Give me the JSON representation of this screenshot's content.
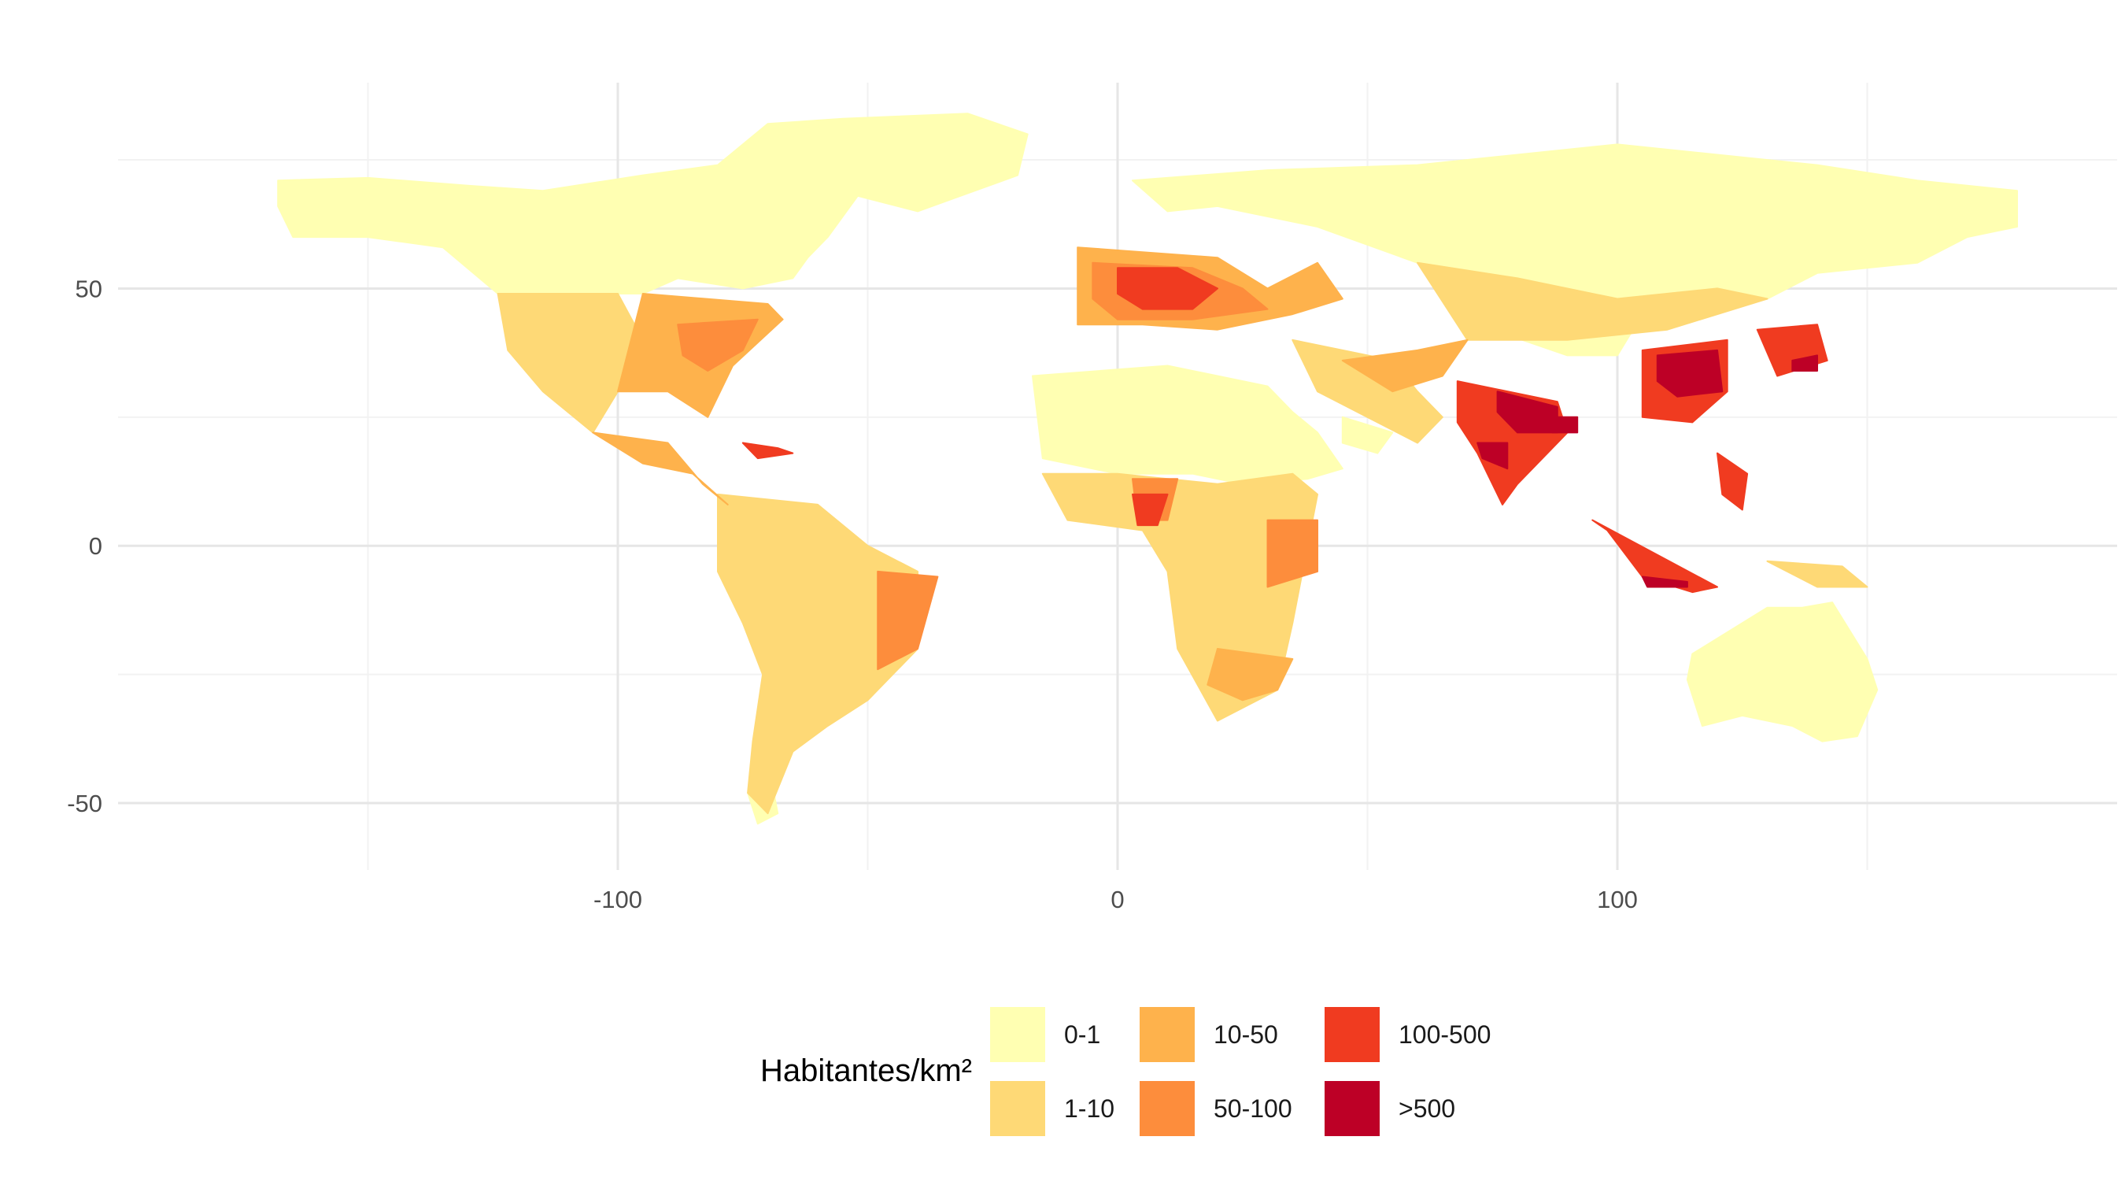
{
  "chart_data": {
    "type": "choropleth-raster",
    "title": "",
    "xlabel": "",
    "ylabel": "",
    "xlim": [
      -200,
      200
    ],
    "ylim": [
      -63,
      90
    ],
    "x_ticks": [
      {
        "value": -100,
        "label": "-100"
      },
      {
        "value": 0,
        "label": "0"
      },
      {
        "value": 100,
        "label": "100"
      }
    ],
    "y_ticks": [
      {
        "value": 50,
        "label": "50"
      },
      {
        "value": 0,
        "label": "0"
      },
      {
        "value": -50,
        "label": "-50"
      }
    ],
    "x_minor_gridlines": [
      -150,
      -50,
      50,
      150
    ],
    "y_minor_gridlines": [
      75,
      25,
      -25
    ],
    "grid": true,
    "legend": {
      "title": "Habitantes/km²",
      "placement": "bottom",
      "entries": [
        {
          "label": "0-1",
          "color": "#FFFFB2"
        },
        {
          "label": "1-10",
          "color": "#FED976"
        },
        {
          "label": "10-50",
          "color": "#FEB24C"
        },
        {
          "label": "50-100",
          "color": "#FD8D3C"
        },
        {
          "label": "100-500",
          "color": "#F03B20"
        },
        {
          "label": ">500",
          "color": "#BD0026"
        }
      ]
    },
    "regions": [
      {
        "class": 0,
        "polygons": [
          [
            [
              -168,
              71
            ],
            [
              -150,
              71.5
            ],
            [
              -130,
              70
            ],
            [
              -115,
              69
            ],
            [
              -95,
              72
            ],
            [
              -80,
              74
            ],
            [
              -70,
              82
            ],
            [
              -55,
              83
            ],
            [
              -30,
              84
            ],
            [
              -18,
              80
            ],
            [
              -20,
              72
            ],
            [
              -40,
              65
            ],
            [
              -52,
              68
            ],
            [
              -58,
              60
            ],
            [
              -62,
              56
            ],
            [
              -65,
              52
            ],
            [
              -75,
              50
            ],
            [
              -88,
              52
            ],
            [
              -95,
              49
            ],
            [
              -110,
              49
            ],
            [
              -124,
              49
            ],
            [
              -135,
              58
            ],
            [
              -150,
              60
            ],
            [
              -165,
              60
            ],
            [
              -168,
              66
            ]
          ],
          [
            [
              3,
              71
            ],
            [
              30,
              73
            ],
            [
              60,
              74
            ],
            [
              100,
              78
            ],
            [
              140,
              74
            ],
            [
              160,
              71
            ],
            [
              180,
              69
            ],
            [
              180,
              62
            ],
            [
              170,
              60
            ],
            [
              160,
              55
            ],
            [
              140,
              53
            ],
            [
              130,
              48
            ],
            [
              120,
              50
            ],
            [
              100,
              48
            ],
            [
              80,
              50
            ],
            [
              60,
              55
            ],
            [
              40,
              62
            ],
            [
              20,
              66
            ],
            [
              10,
              65
            ]
          ],
          [
            [
              -17,
              33
            ],
            [
              10,
              35
            ],
            [
              30,
              31
            ],
            [
              35,
              26
            ],
            [
              40,
              22
            ],
            [
              45,
              15
            ],
            [
              38,
              13
            ],
            [
              25,
              12
            ],
            [
              15,
              14
            ],
            [
              0,
              14
            ],
            [
              -15,
              17
            ]
          ],
          [
            [
              115,
              -21
            ],
            [
              114,
              -26
            ],
            [
              117,
              -35
            ],
            [
              125,
              -33
            ],
            [
              135,
              -35
            ],
            [
              141,
              -38
            ],
            [
              148,
              -37
            ],
            [
              152,
              -28
            ],
            [
              150,
              -22
            ],
            [
              143,
              -11
            ],
            [
              137,
              -12
            ],
            [
              130,
              -12
            ]
          ],
          [
            [
              75,
              42
            ],
            [
              90,
              37
            ],
            [
              100,
              37
            ],
            [
              105,
              45
            ],
            [
              95,
              47
            ],
            [
              80,
              45
            ]
          ],
          [
            [
              -70,
              -42
            ],
            [
              -68,
              -52
            ],
            [
              -72,
              -54
            ],
            [
              -74,
              -48
            ]
          ],
          [
            [
              45,
              25
            ],
            [
              55,
              22
            ],
            [
              52,
              18
            ],
            [
              45,
              20
            ]
          ]
        ]
      },
      {
        "class": 1,
        "polygons": [
          [
            [
              -124,
              49
            ],
            [
              -100,
              49
            ],
            [
              -95,
              40
            ],
            [
              -100,
              30
            ],
            [
              -105,
              22
            ],
            [
              -115,
              30
            ],
            [
              -122,
              38
            ]
          ],
          [
            [
              -80,
              10
            ],
            [
              -60,
              8
            ],
            [
              -50,
              0
            ],
            [
              -40,
              -5
            ],
            [
              -40,
              -20
            ],
            [
              -50,
              -30
            ],
            [
              -58,
              -35
            ],
            [
              -65,
              -40
            ],
            [
              -70,
              -52
            ],
            [
              -74,
              -48
            ],
            [
              -73,
              -38
            ],
            [
              -71,
              -25
            ],
            [
              -75,
              -15
            ],
            [
              -80,
              -5
            ]
          ],
          [
            [
              -15,
              14
            ],
            [
              0,
              14
            ],
            [
              20,
              12
            ],
            [
              35,
              14
            ],
            [
              40,
              10
            ],
            [
              38,
              0
            ],
            [
              35,
              -15
            ],
            [
              32,
              -28
            ],
            [
              20,
              -34
            ],
            [
              12,
              -20
            ],
            [
              10,
              -5
            ],
            [
              5,
              3
            ],
            [
              -10,
              5
            ]
          ],
          [
            [
              35,
              40
            ],
            [
              45,
              38
            ],
            [
              55,
              36
            ],
            [
              60,
              30
            ],
            [
              65,
              25
            ],
            [
              60,
              20
            ],
            [
              50,
              25
            ],
            [
              40,
              30
            ]
          ],
          [
            [
              60,
              55
            ],
            [
              80,
              52
            ],
            [
              100,
              48
            ],
            [
              120,
              50
            ],
            [
              130,
              48
            ],
            [
              110,
              42
            ],
            [
              90,
              40
            ],
            [
              70,
              40
            ]
          ],
          [
            [
              130,
              -3
            ],
            [
              145,
              -4
            ],
            [
              150,
              -8
            ],
            [
              140,
              -8
            ]
          ]
        ]
      },
      {
        "class": 2,
        "polygons": [
          [
            [
              -95,
              49
            ],
            [
              -70,
              47
            ],
            [
              -67,
              44
            ],
            [
              -77,
              35
            ],
            [
              -82,
              25
            ],
            [
              -90,
              30
            ],
            [
              -100,
              30
            ]
          ],
          [
            [
              -8,
              58
            ],
            [
              20,
              56
            ],
            [
              30,
              50
            ],
            [
              40,
              55
            ],
            [
              45,
              48
            ],
            [
              35,
              45
            ],
            [
              20,
              42
            ],
            [
              5,
              43
            ],
            [
              -8,
              43
            ]
          ],
          [
            [
              -105,
              22
            ],
            [
              -90,
              20
            ],
            [
              -83,
              12
            ],
            [
              -78,
              8
            ],
            [
              -85,
              14
            ],
            [
              -95,
              16
            ]
          ],
          [
            [
              20,
              -20
            ],
            [
              35,
              -22
            ],
            [
              32,
              -28
            ],
            [
              25,
              -30
            ],
            [
              18,
              -27
            ]
          ],
          [
            [
              45,
              36
            ],
            [
              60,
              38
            ],
            [
              70,
              40
            ],
            [
              65,
              33
            ],
            [
              55,
              30
            ]
          ]
        ]
      },
      {
        "class": 3,
        "polygons": [
          [
            [
              -88,
              43
            ],
            [
              -72,
              44
            ],
            [
              -75,
              38
            ],
            [
              -82,
              34
            ],
            [
              -87,
              37
            ]
          ],
          [
            [
              -5,
              55
            ],
            [
              15,
              54
            ],
            [
              25,
              50
            ],
            [
              30,
              46
            ],
            [
              15,
              44
            ],
            [
              0,
              44
            ],
            [
              -5,
              48
            ]
          ],
          [
            [
              3,
              13
            ],
            [
              12,
              13
            ],
            [
              10,
              5
            ],
            [
              4,
              5
            ]
          ],
          [
            [
              -48,
              -5
            ],
            [
              -36,
              -6
            ],
            [
              -40,
              -20
            ],
            [
              -48,
              -24
            ]
          ],
          [
            [
              30,
              5
            ],
            [
              40,
              5
            ],
            [
              40,
              -5
            ],
            [
              30,
              -8
            ]
          ]
        ]
      },
      {
        "class": 4,
        "polygons": [
          [
            [
              0,
              54
            ],
            [
              12,
              54
            ],
            [
              20,
              50
            ],
            [
              15,
              46
            ],
            [
              5,
              46
            ],
            [
              0,
              49
            ]
          ],
          [
            [
              105,
              38
            ],
            [
              122,
              40
            ],
            [
              122,
              30
            ],
            [
              115,
              24
            ],
            [
              105,
              25
            ]
          ],
          [
            [
              68,
              32
            ],
            [
              88,
              28
            ],
            [
              90,
              22
            ],
            [
              80,
              12
            ],
            [
              77,
              8
            ],
            [
              72,
              18
            ],
            [
              68,
              24
            ]
          ],
          [
            [
              95,
              5
            ],
            [
              120,
              -8
            ],
            [
              115,
              -9
            ],
            [
              105,
              -6
            ],
            [
              98,
              3
            ]
          ],
          [
            [
              120,
              18
            ],
            [
              126,
              14
            ],
            [
              125,
              7
            ],
            [
              121,
              10
            ]
          ],
          [
            [
              128,
              42
            ],
            [
              140,
              43
            ],
            [
              142,
              36
            ],
            [
              132,
              33
            ]
          ],
          [
            [
              -75,
              20
            ],
            [
              -68,
              19
            ],
            [
              -65,
              18
            ],
            [
              -72,
              17
            ]
          ],
          [
            [
              3,
              10
            ],
            [
              10,
              10
            ],
            [
              8,
              4
            ],
            [
              4,
              4
            ]
          ]
        ]
      },
      {
        "class": 5,
        "polygons": [
          [
            [
              108,
              37
            ],
            [
              120,
              38
            ],
            [
              121,
              30
            ],
            [
              112,
              29
            ],
            [
              108,
              32
            ]
          ],
          [
            [
              76,
              30
            ],
            [
              88,
              27
            ],
            [
              88,
              22
            ],
            [
              80,
              22
            ],
            [
              76,
              26
            ]
          ],
          [
            [
              105,
              -6
            ],
            [
              114,
              -7
            ],
            [
              114,
              -8
            ],
            [
              106,
              -8
            ]
          ],
          [
            [
              86,
              25
            ],
            [
              92,
              25
            ],
            [
              92,
              22
            ],
            [
              87,
              22
            ]
          ],
          [
            [
              72,
              20
            ],
            [
              78,
              20
            ],
            [
              78,
              15
            ],
            [
              73,
              17
            ]
          ],
          [
            [
              135,
              36
            ],
            [
              140,
              37
            ],
            [
              140,
              34
            ],
            [
              135,
              34
            ]
          ]
        ]
      }
    ]
  }
}
